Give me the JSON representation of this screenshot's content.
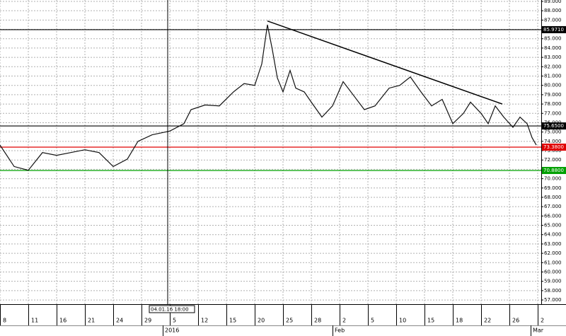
{
  "chart_data": {
    "type": "line",
    "x": [
      0,
      4,
      8,
      12,
      16,
      20,
      24,
      28,
      32,
      36,
      39,
      43,
      48,
      52,
      54,
      58,
      62,
      66,
      69,
      72,
      74,
      75.6,
      77,
      78.4,
      80,
      82,
      83.6,
      86,
      88,
      91,
      94,
      97,
      100,
      103,
      106,
      110,
      113,
      116,
      119,
      122,
      125,
      128,
      131,
      133,
      136,
      138,
      140,
      142.4,
      145,
      147,
      149,
      150.4,
      151.6
    ],
    "series": [
      {
        "color": "#111111",
        "values": [
          73.6,
          71.3,
          70.9,
          72.8,
          72.5,
          72.8,
          73.1,
          72.8,
          71.3,
          72.1,
          74.0,
          74.7,
          75.1,
          75.9,
          77.4,
          77.9,
          77.8,
          79.3,
          80.2,
          80.0,
          82.3,
          86.5,
          83.8,
          80.8,
          79.3,
          81.6,
          79.7,
          79.3,
          78.2,
          76.6,
          77.8,
          80.4,
          78.9,
          77.4,
          77.8,
          79.7,
          80.0,
          80.9,
          79.3,
          77.8,
          78.5,
          75.9,
          77.0,
          78.2,
          77.0,
          75.9,
          77.8,
          76.6,
          75.5,
          76.6,
          75.9,
          74.4,
          73.6
        ]
      }
    ],
    "trendline": {
      "x": [
        75.6,
        142
      ],
      "values": [
        86.9,
        78.0
      ],
      "color": "#000000"
    },
    "levels": [
      {
        "value": 85.971,
        "label": "85.9710",
        "color": "#000000"
      },
      {
        "value": 75.65,
        "label": "75.6500",
        "color": "#000000"
      },
      {
        "value": 73.38,
        "label": "73.3800",
        "color": "#e00000"
      },
      {
        "value": 70.88,
        "label": "70.8800",
        "color": "#00a000"
      }
    ],
    "crosshair": {
      "x": 47.4,
      "label": "04.01.16 18:00"
    },
    "xlim": [
      0,
      153
    ],
    "xticks": [
      {
        "value": 0,
        "label": "8"
      },
      {
        "value": 8,
        "label": "11"
      },
      {
        "value": 16,
        "label": "16"
      },
      {
        "value": 24,
        "label": "21"
      },
      {
        "value": 32,
        "label": "24"
      },
      {
        "value": 40,
        "label": "29"
      },
      {
        "value": 48,
        "label": "5"
      },
      {
        "value": 56,
        "label": "12"
      },
      {
        "value": 64,
        "label": "15"
      },
      {
        "value": 72,
        "label": "20"
      },
      {
        "value": 80,
        "label": "25"
      },
      {
        "value": 88,
        "label": "28"
      },
      {
        "value": 96,
        "label": "2"
      },
      {
        "value": 104,
        "label": "5"
      },
      {
        "value": 112,
        "label": "10"
      },
      {
        "value": 120,
        "label": "15"
      },
      {
        "value": 128,
        "label": "18"
      },
      {
        "value": 136,
        "label": "22"
      },
      {
        "value": 144,
        "label": "26"
      },
      {
        "value": 152,
        "label": "2"
      }
    ],
    "period_ticks": [
      {
        "value": 46,
        "label": "2016"
      },
      {
        "value": 94,
        "label": "Feb"
      },
      {
        "value": 150,
        "label": "Mar"
      }
    ],
    "ylim": [
      56.55,
      89.15
    ],
    "yticks": [
      {
        "value": 57,
        "label": "57.000"
      },
      {
        "value": 58,
        "label": "58.000"
      },
      {
        "value": 59,
        "label": "59.000"
      },
      {
        "value": 60,
        "label": "60.000"
      },
      {
        "value": 61,
        "label": "61.000"
      },
      {
        "value": 62,
        "label": "62.000"
      },
      {
        "value": 63,
        "label": "63.000"
      },
      {
        "value": 64,
        "label": "64.000"
      },
      {
        "value": 65,
        "label": "65.000"
      },
      {
        "value": 66,
        "label": "66.000"
      },
      {
        "value": 67,
        "label": "67.000"
      },
      {
        "value": 68,
        "label": "68.000"
      },
      {
        "value": 69,
        "label": "69.000"
      },
      {
        "value": 70,
        "label": "70.000"
      },
      {
        "value": 71,
        "label": "71.000"
      },
      {
        "value": 72,
        "label": "72.000"
      },
      {
        "value": 73,
        "label": "73.000"
      },
      {
        "value": 74,
        "label": "74.000"
      },
      {
        "value": 75,
        "label": "75.000"
      },
      {
        "value": 76,
        "label": "76.000"
      },
      {
        "value": 77,
        "label": "77.000"
      },
      {
        "value": 78,
        "label": "78.000"
      },
      {
        "value": 79,
        "label": "79.000"
      },
      {
        "value": 80,
        "label": "80.000"
      },
      {
        "value": 81,
        "label": "81.000"
      },
      {
        "value": 82,
        "label": "82.000"
      },
      {
        "value": 83,
        "label": "83.000"
      },
      {
        "value": 84,
        "label": "84.000"
      },
      {
        "value": 85,
        "label": "85.000"
      },
      {
        "value": 86,
        "label": "86.000"
      },
      {
        "value": 87,
        "label": "87.000"
      },
      {
        "value": 88,
        "label": "88.000"
      },
      {
        "value": 89,
        "label": "89.000"
      }
    ],
    "grid": true
  }
}
